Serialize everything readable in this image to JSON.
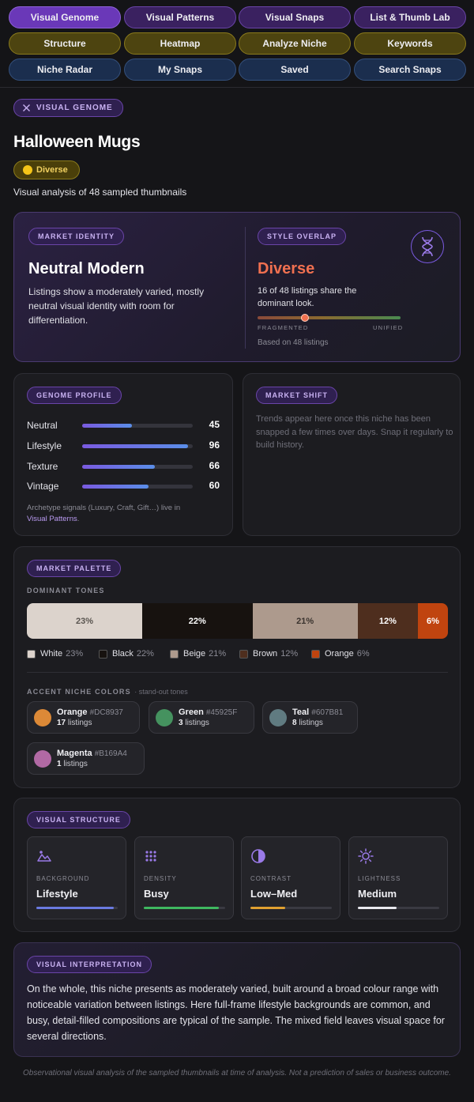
{
  "nav": {
    "row1": [
      "Visual Genome",
      "Visual Patterns",
      "Visual Snaps",
      "List & Thumb Lab"
    ],
    "row2": [
      "Structure",
      "Heatmap",
      "Analyze Niche",
      "Keywords"
    ],
    "row3": [
      "Niche Radar",
      "My Snaps",
      "Saved",
      "Search Snaps"
    ]
  },
  "header": {
    "section_tag": "VISUAL GENOME",
    "title": "Halloween Mugs",
    "badge": "Diverse",
    "subtitle": "Visual analysis of 48 sampled thumbnails"
  },
  "identity": {
    "tag": "MARKET IDENTITY",
    "title": "Neutral Modern",
    "description": "Listings show a moderately varied, mostly neutral visual identity with room for differentiation."
  },
  "overlap": {
    "tag": "STYLE OVERLAP",
    "value": "Diverse",
    "description": "16 of 48 listings share the dominant look.",
    "scale_left": "FRAGMENTED",
    "scale_right": "UNIFIED",
    "position": 0.33,
    "based_on": "Based on 48 listings",
    "icon": "dna-icon"
  },
  "genome": {
    "tag": "GENOME PROFILE",
    "rows": [
      {
        "label": "Neutral",
        "value": 45
      },
      {
        "label": "Lifestyle",
        "value": 96
      },
      {
        "label": "Texture",
        "value": 66
      },
      {
        "label": "Vintage",
        "value": 60
      }
    ],
    "note": "Archetype signals (Luxury, Craft, Gift…) live in",
    "note_link": "Visual Patterns",
    "note_end": "."
  },
  "shift": {
    "tag": "MARKET SHIFT",
    "text": "Trends appear here once this niche has been snapped a few times over days. Snap it regularly to build history."
  },
  "palette": {
    "tag": "MARKET PALETTE",
    "dominant_label": "DOMINANT TONES",
    "tones": [
      {
        "name": "White",
        "pct": "23%",
        "value": 23,
        "color": "#DCD3CC",
        "text_color": "#5a5550"
      },
      {
        "name": "Black",
        "pct": "22%",
        "value": 22,
        "color": "#17120F",
        "text_color": "#ffffff"
      },
      {
        "name": "Beige",
        "pct": "21%",
        "value": 21,
        "color": "#AD9A8D",
        "text_color": "#3a332e"
      },
      {
        "name": "Brown",
        "pct": "12%",
        "value": 12,
        "color": "#4E2E1E",
        "text_color": "#ffffff"
      },
      {
        "name": "Orange",
        "pct": "6%",
        "value": 6,
        "color": "#C0440F",
        "text_color": "#ffffff"
      }
    ],
    "accent_label": "ACCENT NICHE COLORS",
    "accent_sub": "· stand-out tones",
    "accents": [
      {
        "name": "Orange",
        "hex": "#DC8937",
        "count": "17",
        "unit": "listings"
      },
      {
        "name": "Green",
        "hex": "#45925F",
        "count": "3",
        "unit": "listings"
      },
      {
        "name": "Teal",
        "hex": "#607B81",
        "count": "8",
        "unit": "listings"
      },
      {
        "name": "Magenta",
        "hex": "#B169A4",
        "count": "1",
        "unit": "listings"
      }
    ]
  },
  "structure": {
    "tag": "VISUAL STRUCTURE",
    "items": [
      {
        "label": "BACKGROUND",
        "value": "Lifestyle",
        "level": 0.95,
        "color": "#6a7ae0",
        "icon": "image-icon"
      },
      {
        "label": "DENSITY",
        "value": "Busy",
        "level": 0.92,
        "color": "#3fb860",
        "icon": "grid-dots-icon"
      },
      {
        "label": "CONTRAST",
        "value": "Low–Med",
        "level": 0.43,
        "color": "#e0a030",
        "icon": "contrast-icon"
      },
      {
        "label": "LIGHTNESS",
        "value": "Medium",
        "level": 0.48,
        "color": "#e8e8ee",
        "icon": "sun-icon"
      }
    ]
  },
  "interpretation": {
    "tag": "VISUAL INTERPRETATION",
    "text": "On the whole, this niche presents as moderately varied, built around a broad colour range with noticeable variation between listings. Here full-frame lifestyle backgrounds are common, and busy, detail-filled compositions are typical of the sample. The mixed field leaves visual space for several directions."
  },
  "footer": "Observational visual analysis of the sampled thumbnails at time of analysis. Not a prediction of sales or business outcome."
}
